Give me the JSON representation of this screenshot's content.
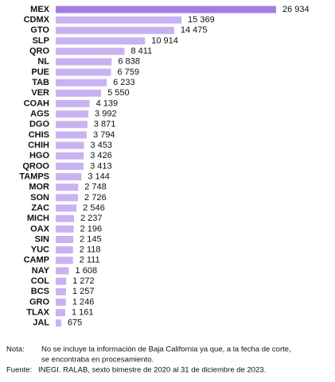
{
  "chart_data": {
    "type": "barh",
    "categories": [
      "MEX",
      "CDMX",
      "GTO",
      "SLP",
      "QRO",
      "NL",
      "PUE",
      "TAB",
      "VER",
      "COAH",
      "AGS",
      "DGO",
      "CHIS",
      "CHIH",
      "HGO",
      "QROO",
      "TAMPS",
      "MOR",
      "SON",
      "ZAC",
      "MICH",
      "OAX",
      "SIN",
      "YUC",
      "CAMP",
      "NAY",
      "COL",
      "BCS",
      "GRO",
      "TLAX",
      "JAL"
    ],
    "values": [
      26934,
      15369,
      14475,
      10914,
      8411,
      6838,
      6759,
      6233,
      5550,
      4139,
      3992,
      3871,
      3794,
      3453,
      3426,
      3413,
      3144,
      2748,
      2726,
      2546,
      2237,
      2196,
      2145,
      2118,
      2111,
      1608,
      1272,
      1257,
      1246,
      1161,
      675
    ],
    "value_labels": [
      "26 934",
      "15 369",
      "14 475",
      "10 914",
      "8 411",
      "6 838",
      "6 759",
      "6 233",
      "5 550",
      "4 139",
      "3 992",
      "3 871",
      "3 794",
      "3 453",
      "3 426",
      "3 413",
      "3 144",
      "2 748",
      "2 726",
      "2 546",
      "2 237",
      "2 196",
      "2 145",
      "2 118",
      "2 111",
      "1 608",
      "1 272",
      "1 257",
      "1 246",
      "1 161",
      "675"
    ],
    "color": "#c9b2f2",
    "highlight_color": "#a47ce6"
  },
  "notes": {
    "note_label": "Nota:",
    "note_lines": [
      "No se incluye la información de Baja California ya que, a la fecha de corte,",
      "se encontraba en procesamiento."
    ],
    "source_label": "Fuente:",
    "source_text": "INEGI. RALAB, sexto bimestre de 2020 al 31 de diciembre de 2023."
  }
}
